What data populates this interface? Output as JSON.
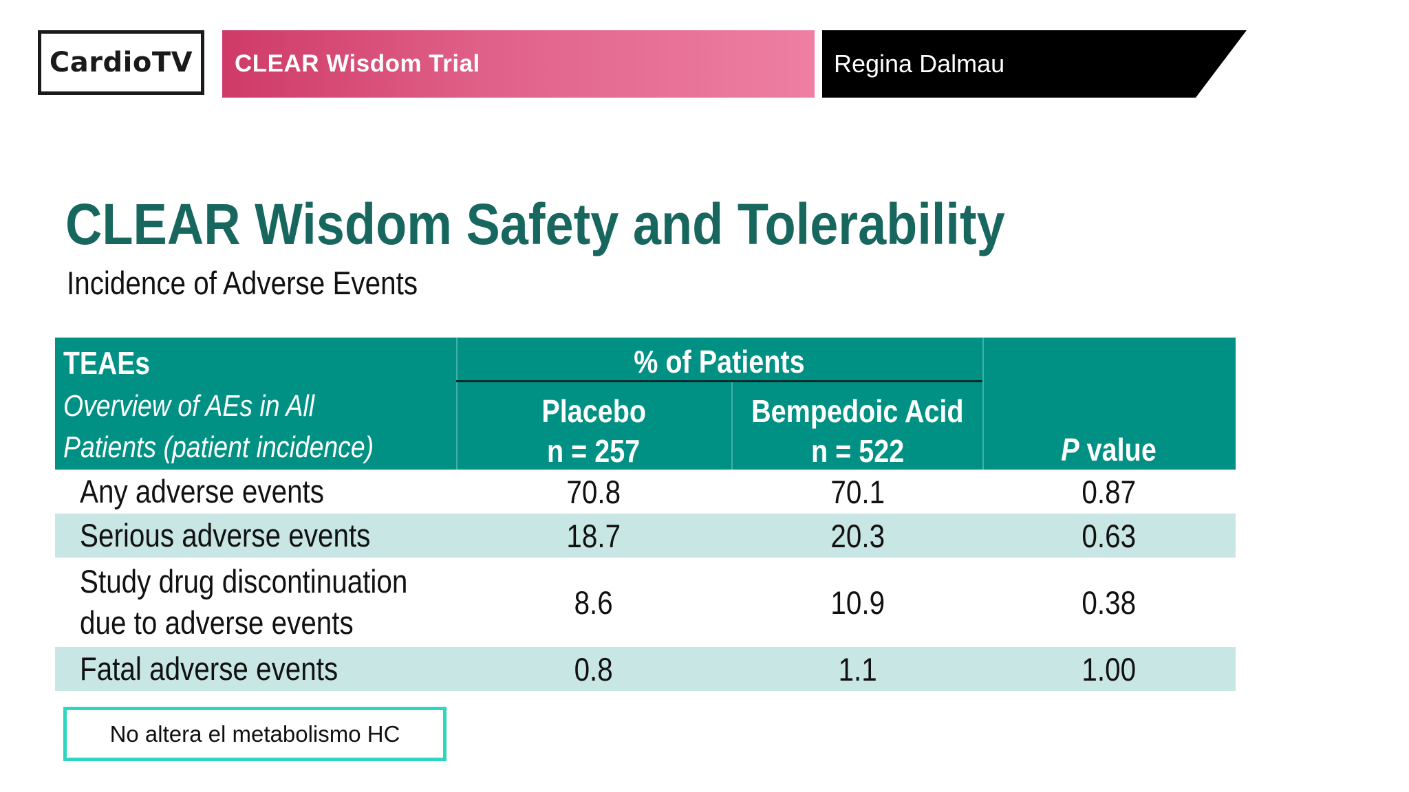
{
  "header": {
    "logo": "CardioTV",
    "program_title": "CLEAR Wisdom Trial",
    "speaker": "Regina Dalmau"
  },
  "slide": {
    "title": "CLEAR Wisdom Safety and Tolerability",
    "subtitle": "Incidence of Adverse Events"
  },
  "table": {
    "header": {
      "teaes": "TEAEs",
      "overview_line1": "Overview of AEs in All",
      "overview_line2": "Patients (patient incidence)",
      "group": "% of Patients",
      "placebo_name": "Placebo",
      "placebo_n": "n = 257",
      "bempedoic_name": "Bempedoic Acid",
      "bempedoic_n": "n = 522",
      "p_italic": "P",
      "p_rest": " value"
    },
    "rows": [
      {
        "label": "Any adverse events",
        "label2": "",
        "placebo": "70.8",
        "bempedoic": "70.1",
        "p": "0.87"
      },
      {
        "label": "Serious adverse events",
        "label2": "",
        "placebo": "18.7",
        "bempedoic": "20.3",
        "p": "0.63"
      },
      {
        "label": "Study drug discontinuation",
        "label2": "due to adverse events",
        "placebo": "8.6",
        "bempedoic": "10.9",
        "p": "0.38"
      },
      {
        "label": "Fatal adverse events",
        "label2": "",
        "placebo": "0.8",
        "bempedoic": "1.1",
        "p": "1.00"
      }
    ]
  },
  "note": "No altera el metabolismo HC",
  "colors": {
    "table_header": "#009184",
    "shaded_row": "#c7e6e4",
    "title": "#17675f",
    "note_border": "#2ed6c2",
    "program_gradient_start": "#cf3a67",
    "program_gradient_end": "#ee7fa3"
  }
}
